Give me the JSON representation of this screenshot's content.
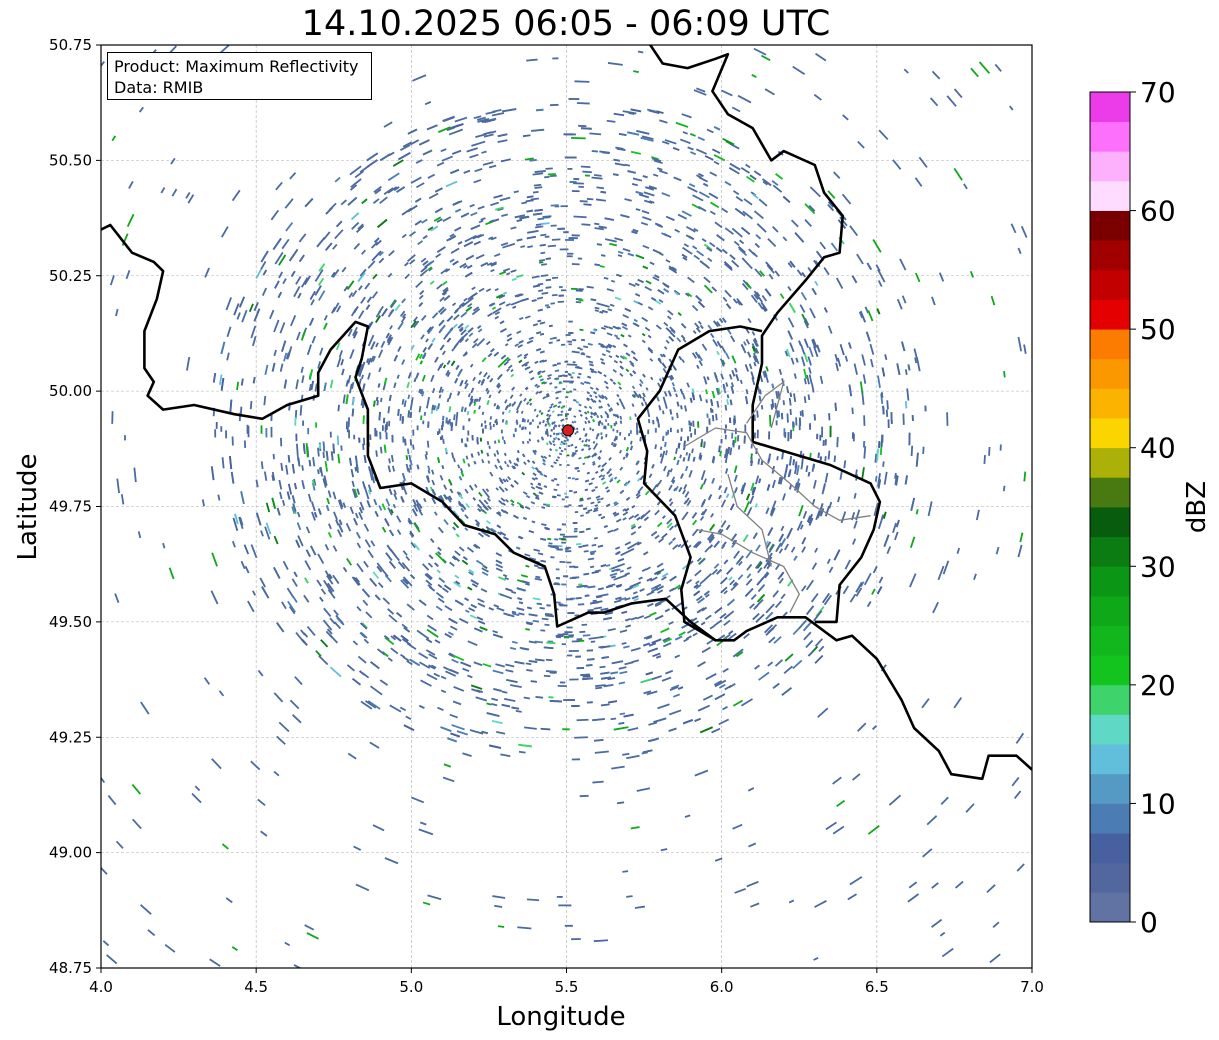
{
  "chart_data": {
    "type": "heatmap",
    "title": "14.10.2025 06:05 - 06:09 UTC",
    "xlabel": "Longitude",
    "ylabel": "Latitude",
    "xlim": [
      4.0,
      7.0
    ],
    "ylim": [
      48.75,
      50.75
    ],
    "x_ticks": [
      "4.0",
      "4.5",
      "5.0",
      "5.5",
      "6.0",
      "6.5",
      "7.0"
    ],
    "y_ticks": [
      "48.75",
      "49.00",
      "49.25",
      "49.50",
      "49.75",
      "50.00",
      "50.25",
      "50.50",
      "50.75"
    ],
    "grid": true,
    "annotation": {
      "product": "Product: Maximum Reflectivity",
      "data_source": "Data: RMIB"
    },
    "radar_site": {
      "lon": 5.505,
      "lat": 49.915,
      "color": "#d62020"
    },
    "reflectivity_extent_deg": 1.1,
    "dominant_color": "#4a6aa0",
    "colorbar": {
      "label": "dBZ",
      "min": 0,
      "max": 70,
      "step": 2.5,
      "ticks": [
        "0",
        "10",
        "20",
        "30",
        "40",
        "50",
        "60",
        "70"
      ],
      "colors": [
        "#6173a3",
        "#53679f",
        "#4660a0",
        "#4c7cb4",
        "#5599c5",
        "#62bfdb",
        "#5fd8c6",
        "#3ed36b",
        "#13c41f",
        "#11b71c",
        "#0ea818",
        "#0c9616",
        "#0a7c12",
        "#075c0e",
        "#497911",
        "#abb108",
        "#fbd500",
        "#fbb300",
        "#fb9800",
        "#fb7c00",
        "#e40000",
        "#c20000",
        "#a10000",
        "#7a0000",
        "#fddcff",
        "#fdb1fd",
        "#fd70fb",
        "#ec3cea"
      ]
    }
  },
  "borders": {
    "country_color": "#000000",
    "region_color": "#808080"
  }
}
